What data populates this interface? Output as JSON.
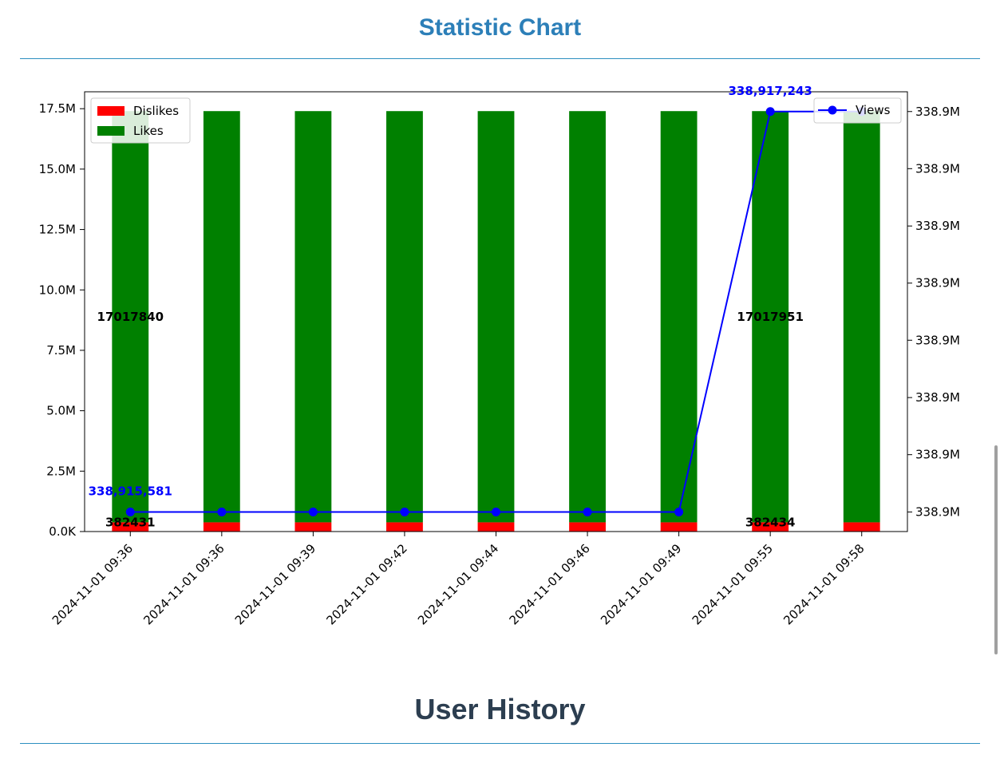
{
  "page": {
    "chart_heading": "Statistic Chart",
    "history_heading": "User History",
    "heading_color": "#2c7fb8",
    "history_heading_color": "#2c3e50",
    "rule_color": "#2c8fc0"
  },
  "chart_data": {
    "type": "bar",
    "title": "",
    "xlabel": "",
    "ylabel": "",
    "y2label": "",
    "categories": [
      "2024-11-01 09:36",
      "2024-11-01 09:36",
      "2024-11-01 09:39",
      "2024-11-01 09:42",
      "2024-11-01 09:44",
      "2024-11-01 09:46",
      "2024-11-01 09:49",
      "2024-11-01 09:55",
      "2024-11-01 09:58"
    ],
    "series": [
      {
        "name": "Dislikes",
        "kind": "bar",
        "color": "#ff0000",
        "values": [
          382431,
          382431,
          382431,
          382431,
          382431,
          382431,
          382431,
          382434,
          382434
        ]
      },
      {
        "name": "Likes",
        "kind": "bar",
        "color": "#008000",
        "stacked_on": "Dislikes",
        "values": [
          17017840,
          17017840,
          17017840,
          17017840,
          17017840,
          17017840,
          17017840,
          17017951,
          17017951
        ]
      },
      {
        "name": "Views",
        "kind": "line",
        "axis": "right",
        "color": "#0000ff",
        "marker": "circle",
        "values": [
          338915581,
          338915581,
          338915581,
          338915581,
          338915581,
          338915581,
          338915581,
          338917243,
          338917243
        ]
      }
    ],
    "left_axis": {
      "ylim": [
        0,
        18200000
      ],
      "ticks": [
        0,
        2500000,
        5000000,
        7500000,
        10000000,
        12500000,
        15000000,
        17500000
      ],
      "tick_labels": [
        "0.0K",
        "2.5M",
        "5.0M",
        "7.5M",
        "10.0M",
        "12.5M",
        "15.0M",
        "17.5M"
      ]
    },
    "right_axis": {
      "ylim": [
        338915500,
        338917325
      ],
      "ticks": [
        338915581,
        338915819,
        338916056,
        338916294,
        338916531,
        338916768,
        338917006,
        338917243
      ],
      "tick_labels": [
        "338.9M",
        "338.9M",
        "338.9M",
        "338.9M",
        "338.9M",
        "338.9M",
        "338.9M",
        "338.9M"
      ]
    },
    "annotations": [
      {
        "text": "17017840",
        "series": "Likes",
        "index": 0,
        "style": "black"
      },
      {
        "text": "382431",
        "series": "Dislikes",
        "index": 0,
        "style": "black"
      },
      {
        "text": "17017951",
        "series": "Likes",
        "index": 7,
        "style": "black"
      },
      {
        "text": "382434",
        "series": "Dislikes",
        "index": 7,
        "style": "black"
      },
      {
        "text": "338,915,581",
        "series": "Views",
        "index": 0,
        "style": "blue"
      },
      {
        "text": "338,917,243",
        "series": "Views",
        "index": 7,
        "style": "blue"
      }
    ],
    "legend_left": {
      "position": "upper-left",
      "items": [
        "Dislikes",
        "Likes"
      ]
    },
    "legend_right": {
      "position": "upper-right",
      "items": [
        "Views"
      ]
    },
    "grid": false
  }
}
